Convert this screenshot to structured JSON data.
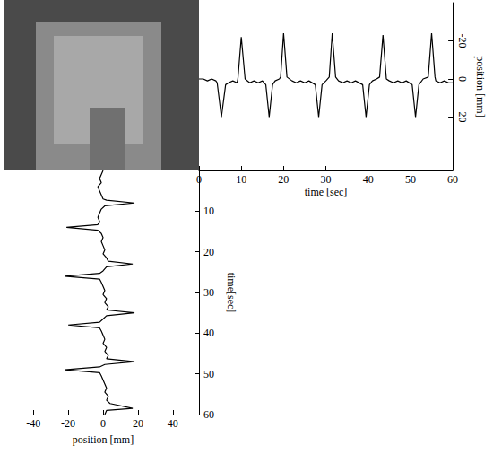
{
  "chart_data": [
    {
      "type": "line",
      "xlabel": "time [sec]",
      "ylabel": "position [mm]",
      "xlim": [
        0,
        60
      ],
      "xticks": [
        0,
        10,
        20,
        30,
        40,
        50,
        60
      ],
      "ylim": [
        48,
        -40
      ],
      "yticks": [
        -20,
        0,
        20
      ],
      "grid": false,
      "color": "#000000",
      "x": [
        0,
        1,
        2,
        3,
        4,
        4.3,
        5.3,
        6.3,
        7,
        8,
        9,
        9.2,
        10,
        10.9,
        12,
        13,
        14,
        15,
        15.8,
        16.6,
        17.4,
        18,
        19,
        19.3,
        20,
        20.8,
        22,
        23,
        24,
        25,
        26,
        27.5,
        28.3,
        29.1,
        30,
        30.8,
        31.5,
        32.3,
        33,
        34,
        35,
        36,
        37,
        38.7,
        39.5,
        40.3,
        41,
        42,
        42.7,
        43.5,
        44.3,
        45,
        46,
        47,
        48,
        49,
        50.4,
        51.2,
        52,
        53,
        54.2,
        55,
        55.8,
        56,
        57,
        58,
        59,
        60
      ],
      "values": [
        0,
        0,
        1,
        0,
        1,
        2,
        20,
        3,
        2,
        1,
        2,
        0,
        -22,
        0,
        2,
        1,
        2,
        1,
        3,
        20,
        3,
        1,
        0,
        -1,
        -24,
        -1,
        1,
        2,
        1,
        2,
        1,
        3,
        20,
        3,
        1,
        -1,
        -24,
        -1,
        1,
        2,
        1,
        2,
        1,
        3,
        20,
        3,
        1,
        0,
        -1,
        -23,
        0,
        1,
        2,
        1,
        2,
        1,
        3,
        20,
        3,
        0,
        -1,
        -24,
        -1,
        1,
        2,
        1,
        2,
        2
      ]
    },
    {
      "type": "line",
      "xlabel": "position [mm]",
      "ylabel": "time[sec]",
      "xlim": [
        -55,
        55
      ],
      "xticks": [
        -40,
        -20,
        0,
        20,
        40
      ],
      "ylim": [
        60,
        0
      ],
      "yticks": [
        10,
        20,
        30,
        40,
        50,
        60
      ],
      "grid": false,
      "color": "#000000",
      "x": [
        0,
        -1,
        -2,
        -1,
        -3,
        -2,
        -1,
        0,
        2,
        18,
        1,
        -1,
        -2,
        -3,
        -2,
        -3,
        -21,
        -3,
        -1,
        0,
        -1,
        0,
        1,
        0,
        2,
        3,
        17,
        2,
        0,
        -2,
        -22,
        -2,
        -1,
        0,
        1,
        0,
        2,
        1,
        3,
        2,
        18,
        2,
        0,
        -2,
        -20,
        -2,
        -1,
        0,
        1,
        0,
        2,
        1,
        3,
        2,
        18,
        1,
        -2,
        -22,
        -2,
        -1,
        0,
        1,
        2,
        1,
        3,
        2,
        4,
        17,
        2,
        1
      ],
      "y": [
        0,
        1,
        2,
        3,
        4,
        5,
        6,
        7,
        7.3,
        8,
        8.7,
        9.5,
        10.5,
        11.5,
        12.5,
        13.3,
        14,
        14.7,
        15.5,
        16.5,
        17.5,
        18.5,
        19.5,
        20.5,
        21.5,
        22.3,
        23,
        23.7,
        24.7,
        25.3,
        26,
        26.7,
        27.5,
        28.5,
        29.5,
        30.5,
        31.5,
        32.5,
        33.5,
        34.3,
        35,
        35.7,
        36.5,
        37.3,
        38,
        38.7,
        39.5,
        40.5,
        41.5,
        42.5,
        43.5,
        44.5,
        45.5,
        46.3,
        47,
        47.7,
        48.3,
        49,
        49.7,
        50.5,
        51.5,
        52.5,
        53.5,
        54.5,
        55.5,
        56.5,
        57.3,
        58.5,
        59,
        60
      ]
    }
  ]
}
